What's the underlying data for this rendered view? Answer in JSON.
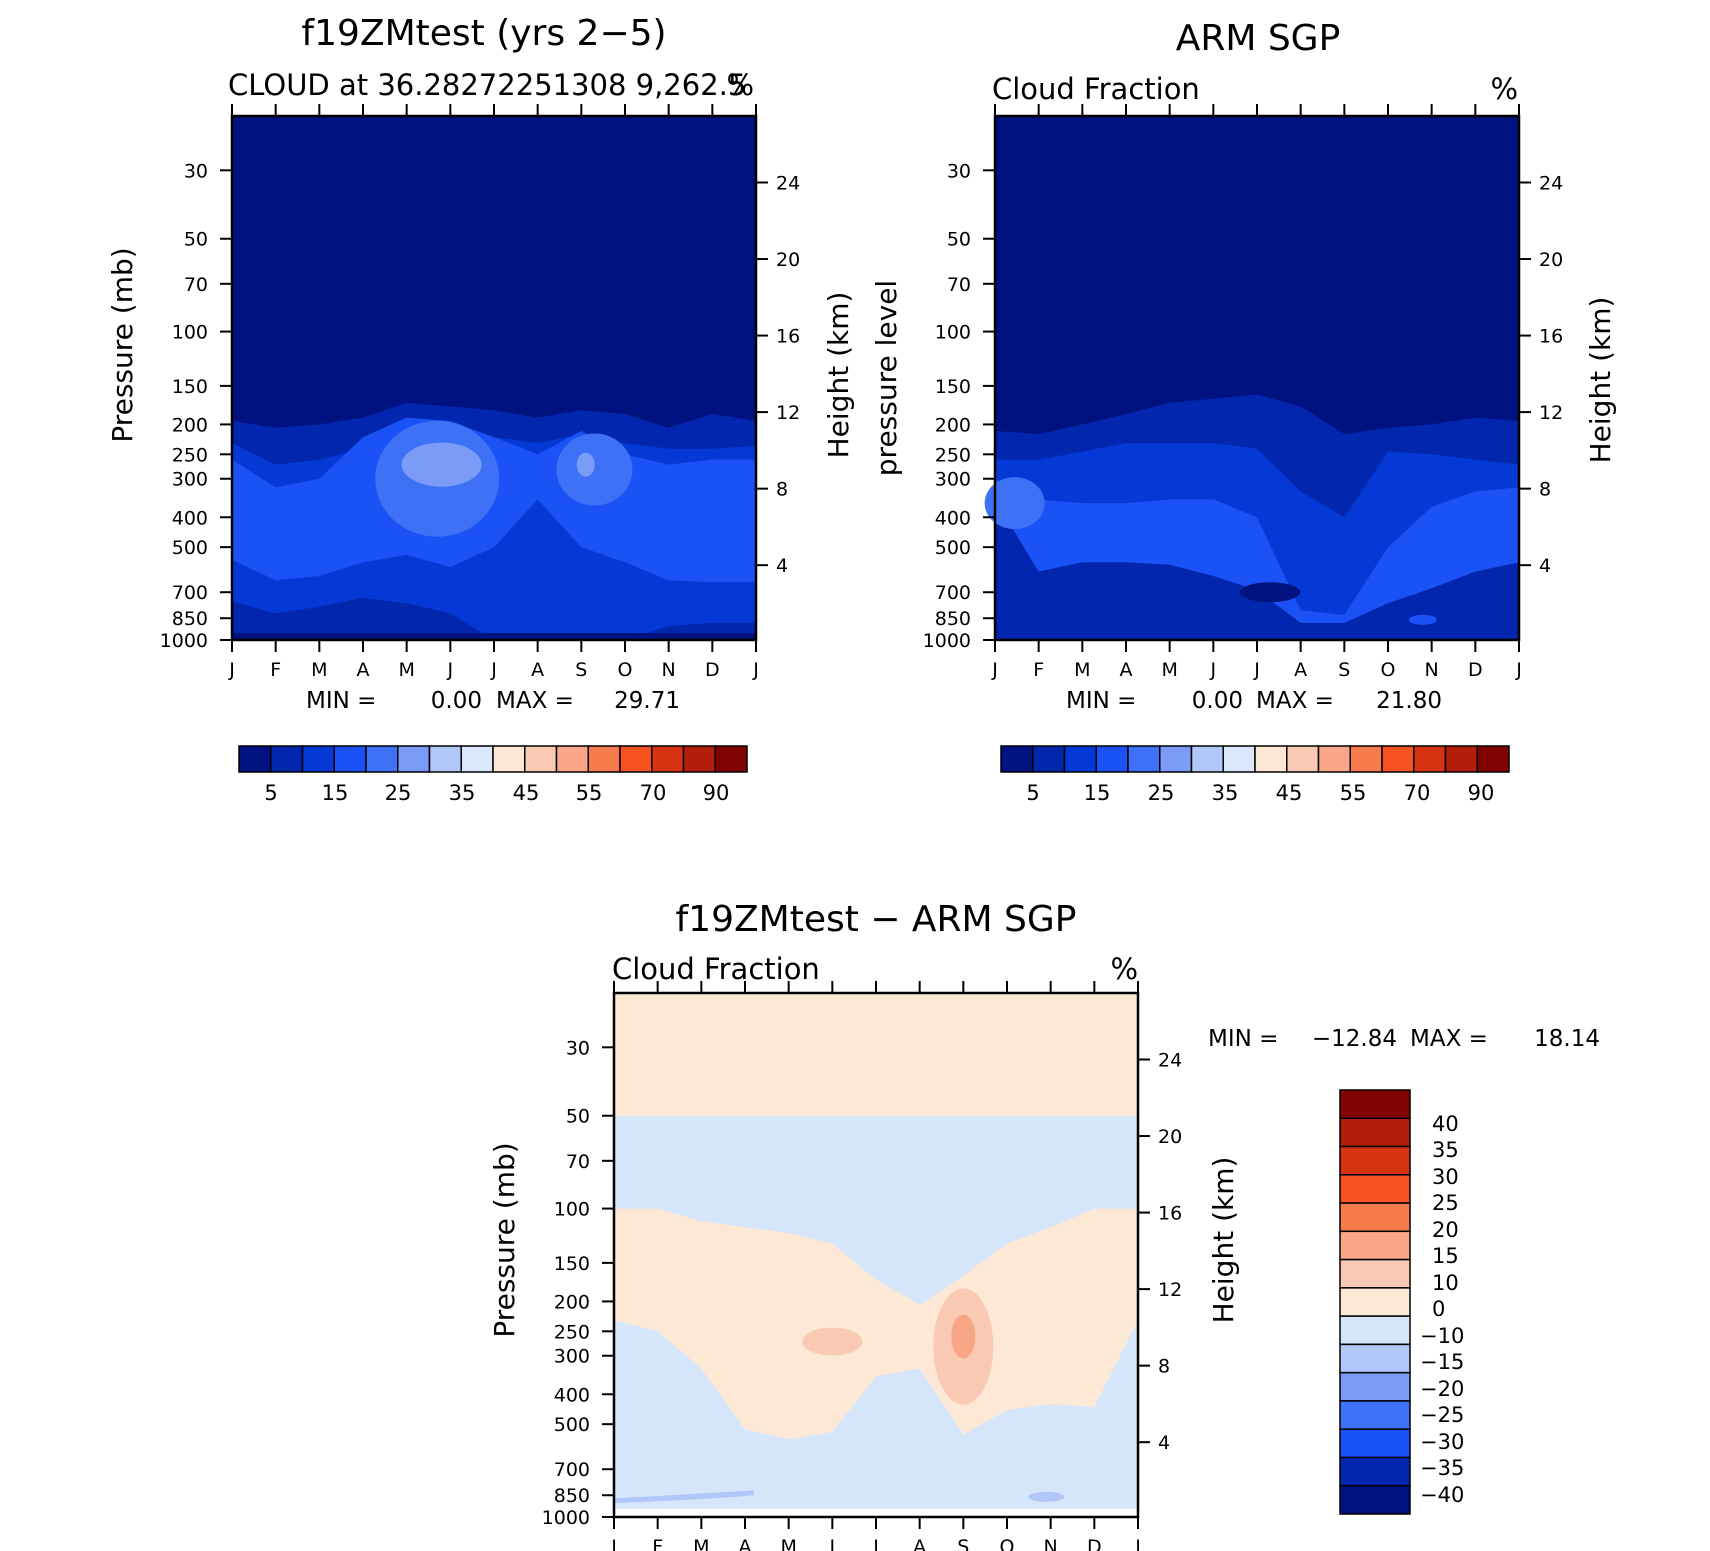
{
  "colors": {
    "fraction_palette": [
      "#00127f",
      "#0226ad",
      "#0439d6",
      "#1b52f5",
      "#3e71f6",
      "#7a9cf7",
      "#b1c6f9",
      "#dbe7fb",
      "#fde6d3",
      "#fac9b4",
      "#f8a686",
      "#f67b4d",
      "#f5521f",
      "#d73312",
      "#b21e09",
      "#7f0402"
    ],
    "difference_palette": [
      "#00127f",
      "#0226ad",
      "#1b52f5",
      "#3e71f6",
      "#7a9cf7",
      "#b1c6f9",
      "#d5e6fb",
      "#fde8d6",
      "#fac9b4",
      "#f8a686",
      "#f67b4d",
      "#f5521f",
      "#d73312",
      "#b21e09",
      "#7f0402"
    ]
  },
  "chart_data": [
    {
      "id": "model",
      "type": "heatmap",
      "title": "f19ZMtest (yrs 2−5)",
      "subtitle_left": "CLOUD at 36.28272251308 9,262.5",
      "subtitle_right": "%",
      "ylabel": "Pressure (mb)",
      "y2label": "Height (km)",
      "x_tick_labels": [
        "J",
        "F",
        "M",
        "A",
        "M",
        "J",
        "J",
        "A",
        "S",
        "O",
        "N",
        "D",
        "J"
      ],
      "y_ticks": [
        "30",
        "50",
        "70",
        "100",
        "150",
        "200",
        "250",
        "300",
        "400",
        "500",
        "700",
        "850",
        "1000"
      ],
      "y2_ticks": [
        "24",
        "20",
        "16",
        "12",
        "8",
        "4"
      ],
      "min_label": "MIN =",
      "min_value": "0.00",
      "max_label": "MAX =",
      "max_value": "29.71",
      "colorbar_labels": [
        "5",
        "15",
        "25",
        "35",
        "45",
        "55",
        "70",
        "90"
      ],
      "cloud_top_mb": [
        195,
        205,
        200,
        190,
        170,
        175,
        180,
        190,
        180,
        185,
        205,
        185,
        195
      ],
      "layer_top_mb": [
        [
          230,
          270,
          260,
          240,
          215,
          215,
          220,
          230,
          215,
          230,
          240,
          240,
          235
        ],
        [
          260,
          320,
          300,
          220,
          190,
          195,
          220,
          250,
          210,
          250,
          270,
          260,
          260
        ],
        [
          320,
          560,
          500,
          330,
          270,
          260,
          320,
          390,
          330,
          420,
          470,
          470,
          480
        ],
        [
          550,
          640,
          620,
          560,
          530,
          580,
          500,
          350,
          500,
          560,
          640,
          650,
          650
        ],
        [
          750,
          820,
          780,
          730,
          760,
          820,
          1000,
          1000,
          1000,
          1000,
          900,
          880,
          880
        ]
      ],
      "max_region": {
        "center_month": 4.8,
        "center_mb": 270,
        "value": 29.71
      }
    },
    {
      "id": "obs",
      "type": "heatmap",
      "title": "ARM SGP",
      "subtitle_left": "Cloud Fraction",
      "subtitle_right": "%",
      "ylabel": "pressure level",
      "y2label": "Height (km)",
      "x_tick_labels": [
        "J",
        "F",
        "M",
        "A",
        "M",
        "J",
        "J",
        "A",
        "S",
        "O",
        "N",
        "D",
        "J"
      ],
      "y_ticks": [
        "30",
        "50",
        "70",
        "100",
        "150",
        "200",
        "250",
        "300",
        "400",
        "500",
        "700",
        "850",
        "1000"
      ],
      "y2_ticks": [
        "24",
        "20",
        "16",
        "12",
        "8",
        "4"
      ],
      "min_label": "MIN =",
      "min_value": "0.00",
      "max_label": "MAX =",
      "max_value": "21.80",
      "colorbar_labels": [
        "5",
        "15",
        "25",
        "35",
        "45",
        "55",
        "70",
        "90"
      ],
      "cloud_top_mb": [
        210,
        215,
        200,
        185,
        170,
        165,
        160,
        175,
        215,
        205,
        200,
        190,
        195
      ],
      "layer_top_mb": [
        [
          260,
          260,
          245,
          230,
          230,
          230,
          240,
          330,
          400,
          245,
          250,
          260,
          270
        ],
        [
          300,
          350,
          360,
          360,
          350,
          350,
          400,
          800,
          830,
          500,
          370,
          330,
          320
        ],
        [
          350,
          600,
          560,
          560,
          570,
          620,
          690,
          880,
          880,
          760,
          680,
          600,
          560
        ]
      ],
      "max_region": {
        "center_month": 0.4,
        "center_mb": 350,
        "value": 21.8
      }
    },
    {
      "id": "diff",
      "type": "heatmap",
      "title": "f19ZMtest − ARM SGP",
      "subtitle_left": "Cloud Fraction",
      "subtitle_right": "%",
      "ylabel": "Pressure (mb)",
      "y2label": "Height (km)",
      "x_tick_labels": [
        "J",
        "F",
        "M",
        "A",
        "M",
        "J",
        "J",
        "A",
        "S",
        "O",
        "N",
        "D",
        "J"
      ],
      "y_ticks": [
        "30",
        "50",
        "70",
        "100",
        "150",
        "200",
        "250",
        "300",
        "400",
        "500",
        "700",
        "850",
        "1000"
      ],
      "y2_ticks": [
        "24",
        "20",
        "16",
        "12",
        "8",
        "4"
      ],
      "min_label": "MIN =",
      "min_value": "−12.84",
      "max_label": "MAX =",
      "max_value": "18.14",
      "colorbar_labels": [
        "40",
        "35",
        "30",
        "25",
        "20",
        "15",
        "10",
        "0",
        "−10",
        "−15",
        "−20",
        "−25",
        "−30",
        "−35",
        "−40"
      ],
      "positive_top_mb": 50,
      "positive_band_top_mb": [
        100,
        100,
        110,
        115,
        120,
        130,
        170,
        205,
        165,
        130,
        115,
        100,
        100
      ],
      "positive_band_bottom_mb": [
        230,
        250,
        330,
        520,
        560,
        530,
        350,
        330,
        540,
        450,
        430,
        440,
        230
      ],
      "max_region": {
        "center_month": 8.0,
        "center_mb": 260,
        "value": 18.14
      }
    }
  ]
}
